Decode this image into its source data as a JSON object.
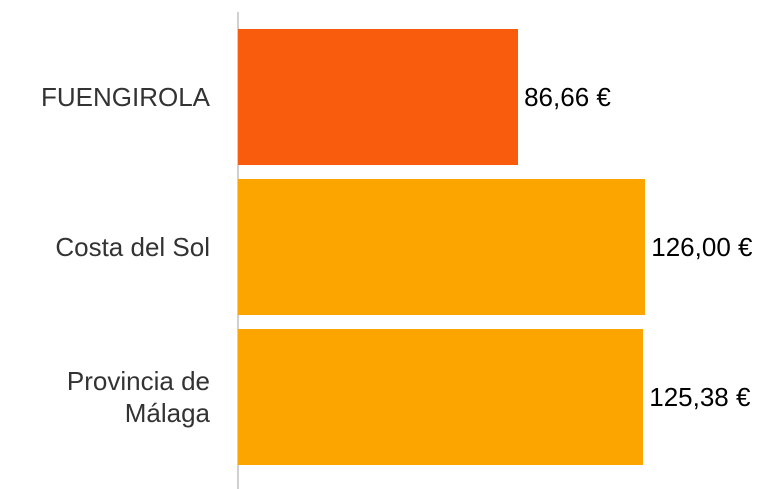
{
  "chart_data": {
    "type": "barh",
    "categories": [
      "FUENGIROLA",
      "Costa del Sol",
      "Provincia de Málaga"
    ],
    "values": [
      86.66,
      126.0,
      125.38
    ],
    "value_labels": [
      "86,66 €",
      "126,00 €",
      "125,38 €"
    ],
    "colors": [
      "#f95c0c",
      "#fca500",
      "#fca500"
    ],
    "xlim": [
      0,
      168
    ]
  }
}
